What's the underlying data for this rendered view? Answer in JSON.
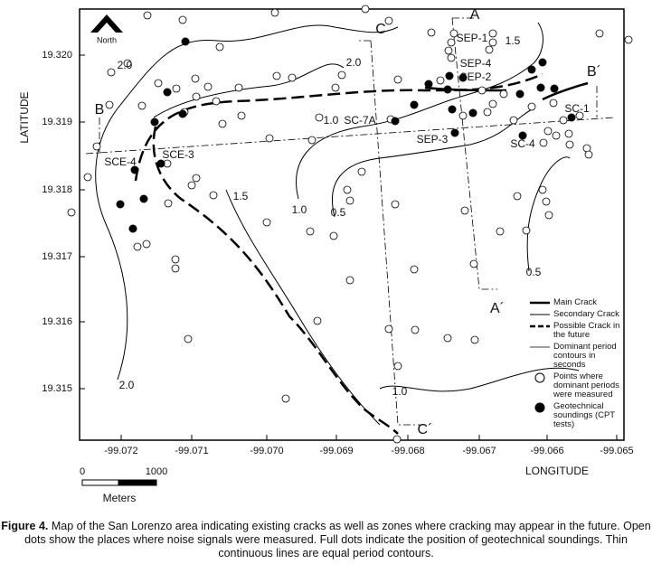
{
  "map": {
    "north": "North",
    "axes": {
      "x_label": "LONGITUDE",
      "y_label": "LATITUDE",
      "x_ticks": [
        "-99.072",
        "-99.071",
        "-99.070",
        "-99.069",
        "-99.068",
        "-99.067",
        "-99.066",
        "-99.065"
      ],
      "y_ticks": [
        "19.320",
        "19.319",
        "19.318",
        "19.317",
        "19.316",
        "19.315"
      ]
    },
    "section_labels": [
      "A",
      "A´",
      "B",
      "B´",
      "C",
      "C´"
    ],
    "site_labels": [
      "SEP-1",
      "SEP-4",
      "SEP-2",
      "SC-7A",
      "SEP-3",
      "SC-4",
      "SC-1",
      "SCE-4",
      "SCE-3"
    ],
    "contour_labels": [
      "1.5",
      "2.0",
      "2.0",
      "1.0",
      "1.5",
      "1.0",
      "0.5",
      "0.5",
      "1.0",
      "2.0"
    ],
    "scale": {
      "start": "0",
      "end": "1000",
      "unit": "Meters"
    },
    "legend": [
      "Main Crack",
      "Secondary Crack",
      "Possible Crack in the future",
      "Dominant period contours in seconds",
      "Points where dominant periods were measured",
      "Geotechnical soundings (CPT tests)"
    ]
  },
  "caption": {
    "label": "Figure 4.",
    "text": " Map of the San Lorenzo area indicating existing cracks as well as zones where cracking may appear in the future. Open dots show the places where noise signals were measured. Full dots indicate the position of geotechnical soundings. Thin continuous lines are equal period contours."
  }
}
